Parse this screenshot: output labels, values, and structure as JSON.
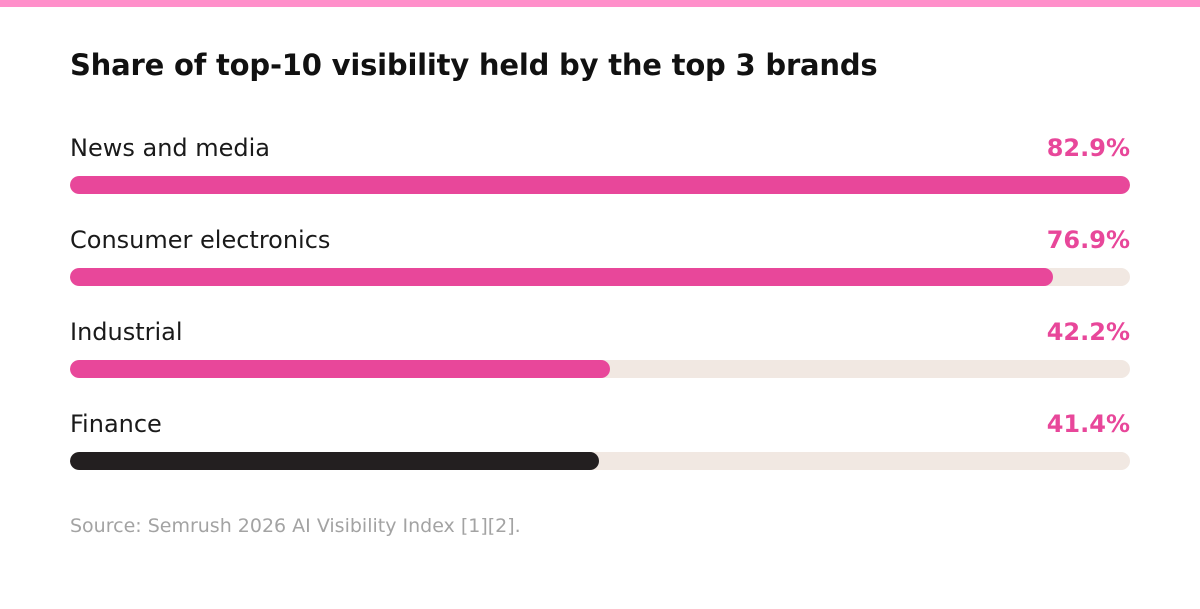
{
  "colors": {
    "top_accent": "#ff8fca",
    "highlight": "#e8479a",
    "dark_bar": "#231f20",
    "track": "#f1e8e2"
  },
  "chart_data": {
    "type": "bar",
    "orientation": "horizontal",
    "title": "Share of top-10 visibility held by the top 3 brands",
    "categories": [
      "News and media",
      "Consumer electronics",
      "Industrial",
      "Finance"
    ],
    "values": [
      82.9,
      76.9,
      42.2,
      41.4
    ],
    "value_labels": [
      "82.9%",
      "76.9%",
      "42.2%",
      "41.4%"
    ],
    "bar_colors": [
      "#e8479a",
      "#e8479a",
      "#e8479a",
      "#231f20"
    ],
    "xlim": [
      0,
      82.9
    ],
    "grid": false,
    "legend": "none"
  },
  "source": "Source: Semrush 2026 AI Visibility Index [1][2]."
}
